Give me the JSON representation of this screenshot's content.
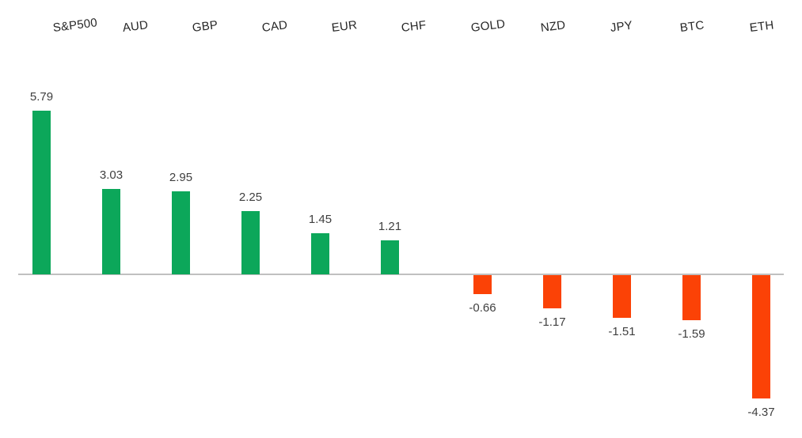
{
  "chart_data": {
    "type": "bar",
    "title": "",
    "xlabel": "",
    "ylabel": "",
    "categories": [
      "S&P500",
      "AUD",
      "GBP",
      "CAD",
      "EUR",
      "CHF",
      "GOLD",
      "NZD",
      "JPY",
      "BTC",
      "ETH"
    ],
    "values": [
      5.79,
      3.03,
      2.95,
      2.25,
      1.45,
      1.21,
      -0.66,
      -1.17,
      -1.51,
      -1.59,
      -4.37
    ],
    "value_labels": [
      "5.79",
      "3.03",
      "2.95",
      "2.25",
      "1.45",
      "1.21",
      "-0.66",
      "-1.17",
      "-1.51",
      "-1.59",
      "-4.37"
    ],
    "ylim": [
      -5,
      6.5
    ],
    "baseline": 0,
    "grid": false,
    "legend": "none",
    "category_label_position": "top",
    "colors": {
      "positive_bar": "#0CA75A",
      "negative_bar": "#FB4206",
      "axis_line": "#C0C0C0",
      "category_label_text": "#262626",
      "value_label_text": "#3F3F3F",
      "background": "#FFFFFF"
    }
  }
}
